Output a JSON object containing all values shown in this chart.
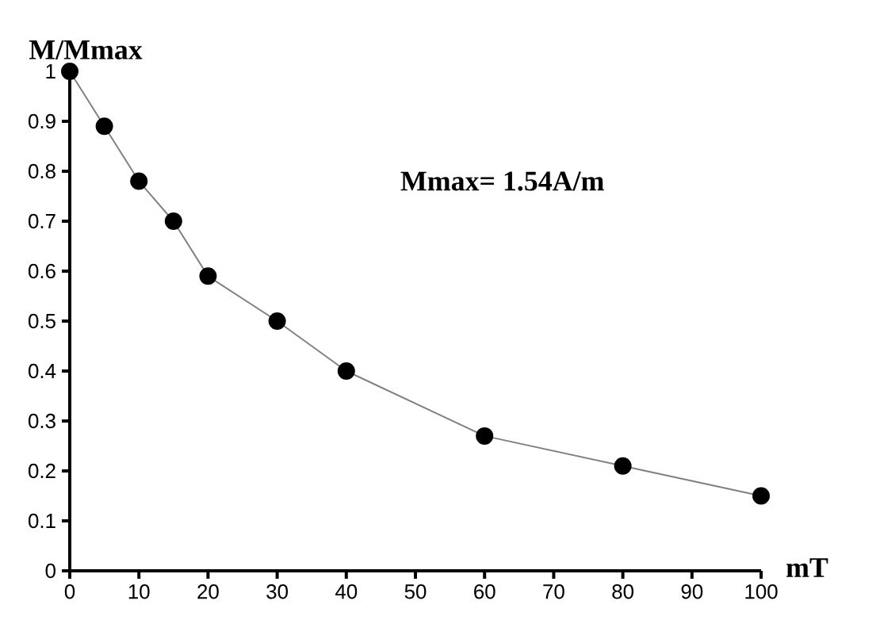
{
  "chart_data": {
    "type": "line",
    "xlabel": "mT",
    "ylabel": "M/Mmax",
    "annotations": [
      "Mmax= 1.54A/m"
    ],
    "x": [
      0,
      5,
      10,
      15,
      20,
      30,
      40,
      60,
      80,
      100
    ],
    "series": [
      {
        "color": "#000000",
        "values": [
          1,
          0.89,
          0.78,
          0.7,
          0.59,
          0.5,
          0.4,
          0.27,
          0.21,
          0.15
        ]
      }
    ],
    "xlim": [
      0,
      100
    ],
    "ylim": [
      0,
      1
    ],
    "xticks": [
      0,
      10,
      20,
      30,
      40,
      50,
      60,
      70,
      80,
      90,
      100
    ],
    "yticks": [
      0,
      0.1,
      0.2,
      0.3,
      0.4,
      0.5,
      0.6,
      0.7,
      0.8,
      0.9,
      1
    ],
    "grid": false,
    "marker": "circle",
    "line_style": "solid"
  }
}
